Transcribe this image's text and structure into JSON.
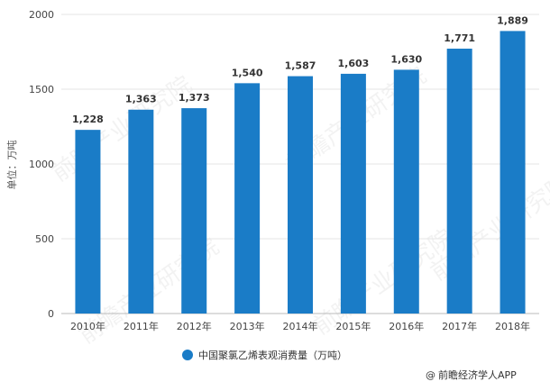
{
  "chart_data": {
    "type": "bar",
    "categories": [
      "2010年",
      "2011年",
      "2012年",
      "2013年",
      "2014年",
      "2015年",
      "2016年",
      "2017年",
      "2018年"
    ],
    "series": [
      {
        "name": "中国聚氯乙烯表观消费量（万吨）",
        "values": [
          1228,
          1363,
          1373,
          1540,
          1587,
          1603,
          1630,
          1771,
          1889
        ],
        "value_labels": [
          "1,228",
          "1,363",
          "1,373",
          "1,540",
          "1,587",
          "1,603",
          "1,630",
          "1,771",
          "1,889"
        ]
      }
    ],
    "ylabel": "单位：万吨",
    "ylim": [
      0,
      2000
    ],
    "yticks": [
      0,
      500,
      1000,
      1500,
      2000
    ],
    "grid": true,
    "legend_placement": "bottom",
    "bar_color": "#1a7cc7"
  },
  "credit": {
    "symbol": "@",
    "text": "前瞻经济学人APP"
  },
  "watermark": {
    "text": "前瞻产业研究院"
  }
}
